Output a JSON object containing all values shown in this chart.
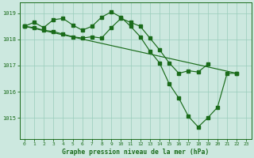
{
  "line1": {
    "x": [
      0,
      1,
      2,
      3,
      4,
      5,
      6,
      7,
      8,
      9,
      10,
      11,
      12,
      13,
      14,
      15,
      16,
      17,
      18,
      19,
      20,
      21,
      22
    ],
    "y": [
      1018.5,
      1018.65,
      1018.45,
      1018.75,
      1018.8,
      1018.55,
      1018.35,
      1018.5,
      1018.85,
      1019.05,
      1018.85,
      1018.5,
      1018.1,
      1017.55,
      1017.1,
      1016.3,
      1015.75,
      1015.05,
      1014.65,
      1015.0,
      1015.4,
      1016.7,
      1016.7
    ]
  },
  "line2": {
    "x": [
      0,
      1,
      2,
      3,
      4,
      5,
      6,
      7,
      8,
      9,
      10,
      11,
      12,
      13,
      14,
      15,
      16,
      17,
      18,
      19,
      20,
      21,
      22
    ],
    "y": [
      1018.5,
      1018.45,
      1018.35,
      1018.3,
      1018.2,
      1018.1,
      1018.05,
      1018.1,
      1018.05,
      1018.45,
      1018.8,
      1018.65,
      1018.5,
      1018.05,
      1017.6,
      1017.1,
      1016.7,
      1016.8,
      1016.75,
      1017.05,
      null,
      null,
      null
    ]
  },
  "line3": {
    "x": [
      0,
      22
    ],
    "y": [
      1018.5,
      1016.7
    ]
  },
  "color": "#1a6b1a",
  "bg_color": "#cce8df",
  "grid_color": "#99ccbb",
  "xlabel": "Graphe pression niveau de la mer (hPa)",
  "yticks": [
    1015,
    1016,
    1017,
    1018,
    1019
  ],
  "xticks": [
    0,
    1,
    2,
    3,
    4,
    5,
    6,
    7,
    8,
    9,
    10,
    11,
    12,
    13,
    14,
    15,
    16,
    17,
    18,
    19,
    20,
    21,
    22,
    23
  ],
  "ylim": [
    1014.2,
    1019.4
  ],
  "xlim": [
    -0.5,
    23.5
  ]
}
